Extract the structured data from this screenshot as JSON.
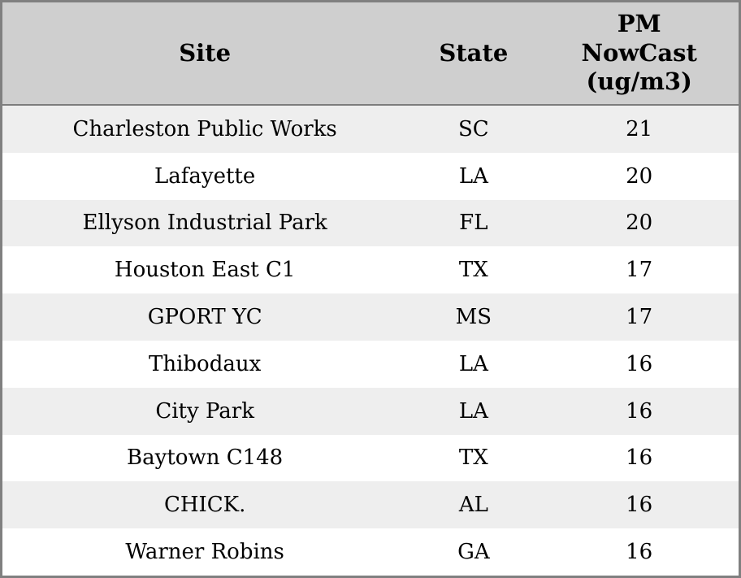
{
  "table": {
    "columns": [
      {
        "key": "site",
        "label": "Site"
      },
      {
        "key": "state",
        "label": "State"
      },
      {
        "key": "value",
        "label": "PM\nNowCast\n(ug/m3)"
      }
    ],
    "rows": [
      {
        "site": "Charleston Public Works",
        "state": "SC",
        "value": "21"
      },
      {
        "site": "Lafayette",
        "state": "LA",
        "value": "20"
      },
      {
        "site": "Ellyson Industrial Park",
        "state": "FL",
        "value": "20"
      },
      {
        "site": "Houston East C1",
        "state": "TX",
        "value": "17"
      },
      {
        "site": "GPORT YC",
        "state": "MS",
        "value": "17"
      },
      {
        "site": "Thibodaux",
        "state": "LA",
        "value": "16"
      },
      {
        "site": "City Park",
        "state": "LA",
        "value": "16"
      },
      {
        "site": "Baytown C148",
        "state": "TX",
        "value": "16"
      },
      {
        "site": "CHICK.",
        "state": "AL",
        "value": "16"
      },
      {
        "site": "Warner Robins",
        "state": "GA",
        "value": "16"
      }
    ]
  },
  "colors": {
    "header_bg": "#cfcfcf",
    "row_alt_bg": "#eeeeee",
    "row_bg": "#ffffff",
    "border": "#808080",
    "text": "#000000"
  },
  "chart_data": {
    "type": "table",
    "title": "",
    "columns": [
      "Site",
      "State",
      "PM NowCast (ug/m3)"
    ],
    "rows": [
      [
        "Charleston Public Works",
        "SC",
        21
      ],
      [
        "Lafayette",
        "LA",
        20
      ],
      [
        "Ellyson Industrial Park",
        "FL",
        20
      ],
      [
        "Houston East C1",
        "TX",
        17
      ],
      [
        "GPORT YC",
        "MS",
        17
      ],
      [
        "Thibodaux",
        "LA",
        16
      ],
      [
        "City Park",
        "LA",
        16
      ],
      [
        "Baytown C148",
        "TX",
        16
      ],
      [
        "CHICK.",
        "AL",
        16
      ],
      [
        "Warner Robins",
        "GA",
        16
      ]
    ]
  }
}
